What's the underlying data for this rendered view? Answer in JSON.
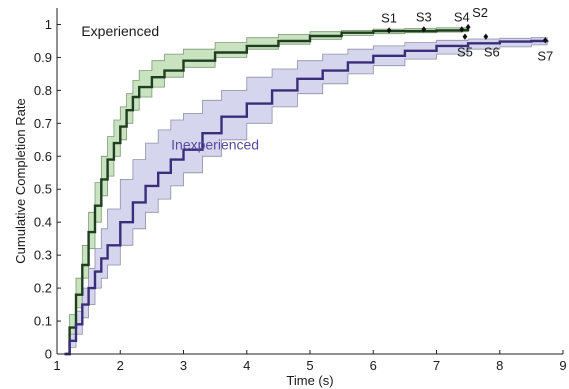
{
  "chart_data": {
    "type": "line",
    "title": "",
    "xlabel": "Time (s)",
    "ylabel": "Cumulative Completion Rate",
    "xlim": [
      1,
      9
    ],
    "ylim": [
      0,
      1.05
    ],
    "x_ticks": [
      1,
      2,
      3,
      4,
      5,
      6,
      7,
      8,
      9
    ],
    "y_ticks": [
      0,
      0.1,
      0.2,
      0.3,
      0.4,
      0.5,
      0.6,
      0.7,
      0.8,
      0.9,
      1
    ],
    "x_tick_labels": [
      "1",
      "2",
      "3",
      "4",
      "5",
      "6",
      "7",
      "8",
      "9"
    ],
    "y_tick_labels": [
      "0",
      "0.1",
      "0.2",
      "0.3",
      "0.4",
      "0.5",
      "0.6",
      "0.7",
      "0.8",
      "0.9",
      "1"
    ],
    "grid": false,
    "legend": "none",
    "series": [
      {
        "name": "Experienced",
        "color": "#1f3d1f",
        "band_color": "#c9e3c0",
        "band_stroke": "#7a9a70",
        "label_color": "#1a1a1a",
        "x": [
          1.12,
          1.2,
          1.3,
          1.4,
          1.5,
          1.6,
          1.7,
          1.8,
          1.9,
          2.0,
          2.1,
          2.2,
          2.3,
          2.5,
          2.7,
          3.0,
          3.5,
          4.0,
          4.5,
          5.0,
          5.5,
          6.0,
          6.5,
          7.0,
          7.4,
          7.5
        ],
        "y": [
          0.0,
          0.08,
          0.18,
          0.27,
          0.37,
          0.45,
          0.53,
          0.59,
          0.64,
          0.69,
          0.74,
          0.78,
          0.81,
          0.84,
          0.86,
          0.89,
          0.915,
          0.935,
          0.95,
          0.965,
          0.975,
          0.98,
          0.98,
          0.982,
          0.983,
          0.985
        ],
        "lower": [
          0.0,
          0.05,
          0.14,
          0.23,
          0.32,
          0.4,
          0.48,
          0.54,
          0.6,
          0.65,
          0.7,
          0.74,
          0.78,
          0.81,
          0.84,
          0.87,
          0.9,
          0.925,
          0.94,
          0.955,
          0.967,
          0.972,
          0.975,
          0.977,
          0.978,
          0.98
        ],
        "upper": [
          0.0,
          0.12,
          0.23,
          0.33,
          0.43,
          0.52,
          0.6,
          0.66,
          0.71,
          0.75,
          0.79,
          0.83,
          0.86,
          0.89,
          0.91,
          0.925,
          0.945,
          0.96,
          0.97,
          0.978,
          0.982,
          0.986,
          0.988,
          0.99,
          0.99,
          0.99
        ]
      },
      {
        "name": "Inexperienced",
        "color": "#3a2e7a",
        "band_color": "#d6d5ee",
        "band_stroke": "#8f8fa6",
        "label_color": "#5a4aa0",
        "x": [
          1.12,
          1.2,
          1.3,
          1.4,
          1.5,
          1.6,
          1.7,
          1.8,
          2.0,
          2.2,
          2.4,
          2.6,
          2.8,
          3.0,
          3.3,
          3.6,
          4.0,
          4.4,
          4.8,
          5.2,
          5.6,
          6.0,
          6.5,
          7.0,
          7.5,
          8.0,
          8.5,
          8.75
        ],
        "y": [
          0.0,
          0.04,
          0.09,
          0.15,
          0.2,
          0.25,
          0.29,
          0.33,
          0.4,
          0.46,
          0.51,
          0.55,
          0.59,
          0.62,
          0.67,
          0.72,
          0.76,
          0.8,
          0.835,
          0.86,
          0.885,
          0.905,
          0.92,
          0.935,
          0.943,
          0.948,
          0.95,
          0.952
        ],
        "lower": [
          0.0,
          0.02,
          0.06,
          0.11,
          0.15,
          0.2,
          0.23,
          0.27,
          0.33,
          0.38,
          0.43,
          0.47,
          0.51,
          0.55,
          0.6,
          0.65,
          0.7,
          0.75,
          0.79,
          0.82,
          0.85,
          0.875,
          0.895,
          0.91,
          0.925,
          0.932,
          0.938,
          0.94
        ],
        "upper": [
          0.0,
          0.06,
          0.13,
          0.2,
          0.26,
          0.32,
          0.38,
          0.44,
          0.53,
          0.59,
          0.64,
          0.68,
          0.71,
          0.73,
          0.77,
          0.8,
          0.84,
          0.865,
          0.89,
          0.91,
          0.925,
          0.935,
          0.945,
          0.952,
          0.956,
          0.958,
          0.96,
          0.961
        ]
      }
    ],
    "annotations": [
      {
        "text": "Experienced",
        "x": 2.0,
        "y": 0.965,
        "series": 0
      },
      {
        "text": "Inexperienced",
        "x": 3.5,
        "y": 0.62,
        "series": 1
      }
    ],
    "markers": [
      {
        "label": "S1",
        "x": 6.25,
        "y": 0.982,
        "label_pos": "above"
      },
      {
        "label": "S3",
        "x": 6.8,
        "y": 0.985,
        "label_pos": "above"
      },
      {
        "label": "S4",
        "x": 7.4,
        "y": 0.985,
        "label_pos": "above"
      },
      {
        "label": "S2",
        "x": 7.5,
        "y": 0.992,
        "label_pos": "above-right"
      },
      {
        "label": "S5",
        "x": 7.45,
        "y": 0.963,
        "label_pos": "below"
      },
      {
        "label": "S6",
        "x": 7.78,
        "y": 0.963,
        "label_pos": "below-right"
      },
      {
        "label": "S7",
        "x": 8.72,
        "y": 0.952,
        "label_pos": "below"
      }
    ]
  }
}
